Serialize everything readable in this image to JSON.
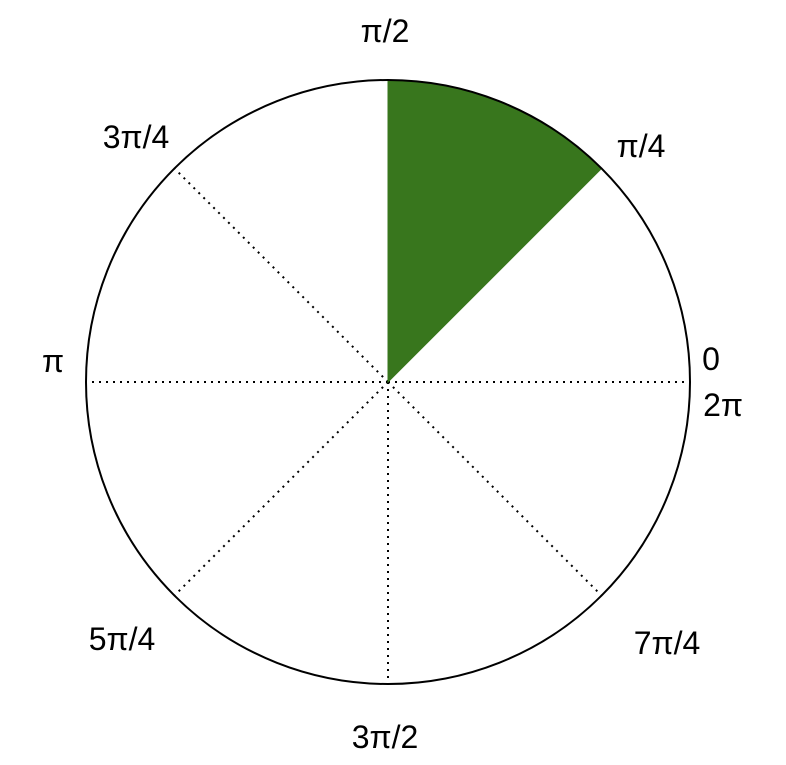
{
  "diagram": {
    "labels": {
      "zero": "0",
      "two_pi": "2π",
      "pi_over_4": "π/4",
      "pi_over_2": "π/2",
      "three_pi_over_4": "3π/4",
      "pi": "π",
      "five_pi_over_4": "5π/4",
      "three_pi_over_2": "3π/2",
      "seven_pi_over_4": "7π/4"
    },
    "sector": {
      "start_angle": "π/4",
      "end_angle": "π/2",
      "color": "#38761d"
    },
    "circle_color": "#000000"
  }
}
